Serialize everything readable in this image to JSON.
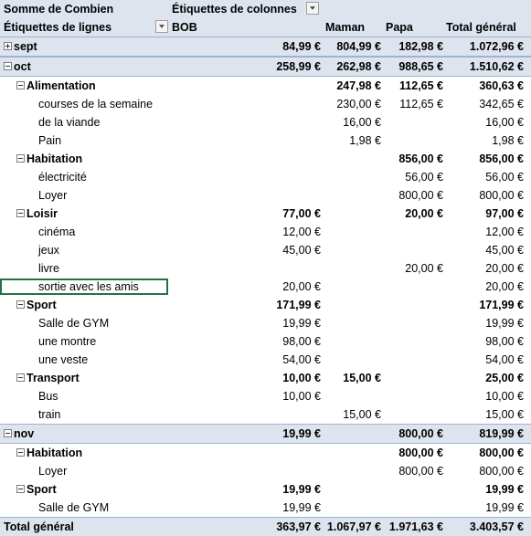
{
  "header": {
    "sum_label": "Somme de Combien",
    "col_labels_caption": "Étiquettes de colonnes",
    "row_labels_caption": "Étiquettes de lignes",
    "columns": [
      "BOB",
      "Maman",
      "Papa",
      "Total général"
    ],
    "filter_icon": "dropdown-filter-icon"
  },
  "rows": [
    {
      "label": "sept",
      "level": 0,
      "toggle": "plus",
      "bold": true,
      "values": [
        "84,99 €",
        "804,99 €",
        "182,98 €",
        "1.072,96 €"
      ]
    },
    {
      "label": "oct",
      "level": 0,
      "toggle": "minus",
      "bold": true,
      "values": [
        "258,99 €",
        "262,98 €",
        "988,65 €",
        "1.510,62 €"
      ]
    },
    {
      "label": "Alimentation",
      "level": 1,
      "toggle": "minus",
      "bold": true,
      "values": [
        "",
        "247,98 €",
        "112,65 €",
        "360,63 €"
      ]
    },
    {
      "label": "courses de la semaine",
      "level": 2,
      "values": [
        "",
        "230,00 €",
        "112,65 €",
        "342,65 €"
      ]
    },
    {
      "label": "de la viande",
      "level": 2,
      "values": [
        "",
        "16,00 €",
        "",
        "16,00 €"
      ]
    },
    {
      "label": "Pain",
      "level": 2,
      "values": [
        "",
        "1,98 €",
        "",
        "1,98 €"
      ]
    },
    {
      "label": "Habitation",
      "level": 1,
      "toggle": "minus",
      "bold": true,
      "values": [
        "",
        "",
        "856,00 €",
        "856,00 €"
      ]
    },
    {
      "label": "électricité",
      "level": 2,
      "values": [
        "",
        "",
        "56,00 €",
        "56,00 €"
      ]
    },
    {
      "label": "Loyer",
      "level": 2,
      "values": [
        "",
        "",
        "800,00 €",
        "800,00 €"
      ]
    },
    {
      "label": "Loisir",
      "level": 1,
      "toggle": "minus",
      "bold": true,
      "values": [
        "77,00 €",
        "",
        "20,00 €",
        "97,00 €"
      ]
    },
    {
      "label": "cinéma",
      "level": 2,
      "values": [
        "12,00 €",
        "",
        "",
        "12,00 €"
      ]
    },
    {
      "label": "jeux",
      "level": 2,
      "values": [
        "45,00 €",
        "",
        "",
        "45,00 €"
      ]
    },
    {
      "label": "livre",
      "level": 2,
      "values": [
        "",
        "",
        "20,00 €",
        "20,00 €"
      ]
    },
    {
      "label": "sortie avec les amis",
      "level": 2,
      "selected": true,
      "values": [
        "20,00 €",
        "",
        "",
        "20,00 €"
      ]
    },
    {
      "label": "Sport",
      "level": 1,
      "toggle": "minus",
      "bold": true,
      "values": [
        "171,99 €",
        "",
        "",
        "171,99 €"
      ]
    },
    {
      "label": "Salle de GYM",
      "level": 2,
      "values": [
        "19,99 €",
        "",
        "",
        "19,99 €"
      ]
    },
    {
      "label": "une montre",
      "level": 2,
      "values": [
        "98,00 €",
        "",
        "",
        "98,00 €"
      ]
    },
    {
      "label": "une veste",
      "level": 2,
      "values": [
        "54,00 €",
        "",
        "",
        "54,00 €"
      ]
    },
    {
      "label": "Transport",
      "level": 1,
      "toggle": "minus",
      "bold": true,
      "values": [
        "10,00 €",
        "15,00 €",
        "",
        "25,00 €"
      ]
    },
    {
      "label": "Bus",
      "level": 2,
      "values": [
        "10,00 €",
        "",
        "",
        "10,00 €"
      ]
    },
    {
      "label": "train",
      "level": 2,
      "values": [
        "",
        "15,00 €",
        "",
        "15,00 €"
      ]
    },
    {
      "label": "nov",
      "level": 0,
      "toggle": "minus",
      "bold": true,
      "values": [
        "19,99 €",
        "",
        "800,00 €",
        "819,99 €"
      ]
    },
    {
      "label": "Habitation",
      "level": 1,
      "toggle": "minus",
      "bold": true,
      "values": [
        "",
        "",
        "800,00 €",
        "800,00 €"
      ]
    },
    {
      "label": "Loyer",
      "level": 2,
      "values": [
        "",
        "",
        "800,00 €",
        "800,00 €"
      ]
    },
    {
      "label": "Sport",
      "level": 1,
      "toggle": "minus",
      "bold": true,
      "values": [
        "19,99 €",
        "",
        "",
        "19,99 €"
      ]
    },
    {
      "label": "Salle de GYM",
      "level": 2,
      "values": [
        "19,99 €",
        "",
        "",
        "19,99 €"
      ]
    }
  ],
  "grand_total": {
    "label": "Total général",
    "values": [
      "363,97 €",
      "1.067,97 €",
      "1.971,63 €",
      "3.403,57 €"
    ]
  }
}
